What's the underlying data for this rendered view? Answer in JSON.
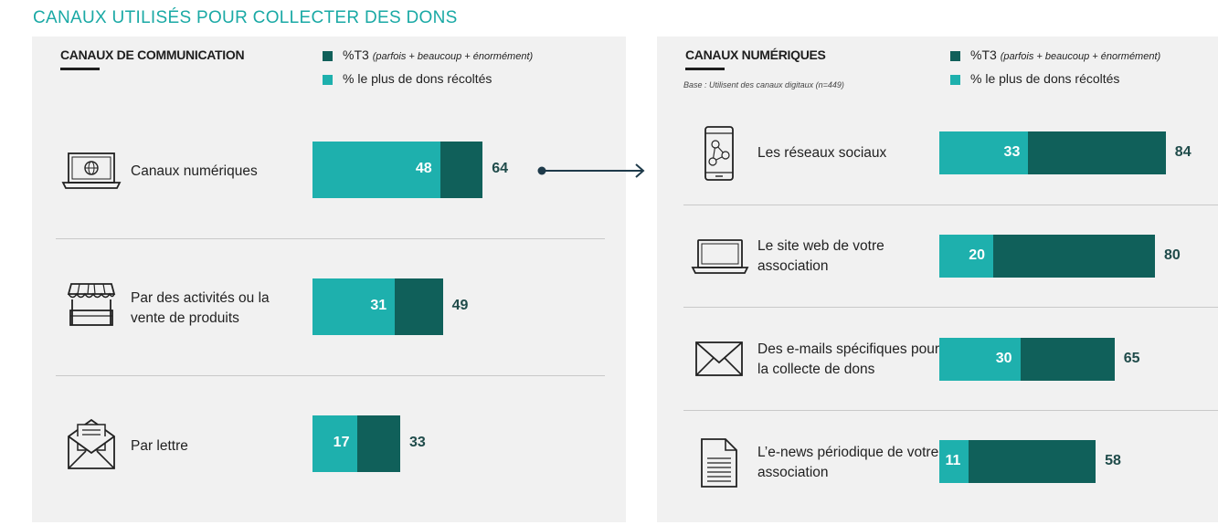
{
  "title": "CANAUX UTILISÉS POUR COLLECTER DES DONS",
  "colors": {
    "t3": "#10605a",
    "most": "#1eb0ad",
    "title": "#1aa9a5",
    "panel": "#f1f1f1"
  },
  "legend": {
    "t3_label": "%T3",
    "t3_note": "(parfois + beaucoup + énormément)",
    "most_label": "% le plus de dons récoltés"
  },
  "chart_data": [
    {
      "type": "bar",
      "title": "CANAUX DE COMMUNICATION",
      "categories": [
        "Canaux numériques",
        "Par des activités ou la vente de produits",
        "Par lettre"
      ],
      "series": [
        {
          "name": "%T3 (parfois + beaucoup + énormément)",
          "values": [
            64,
            49,
            33
          ]
        },
        {
          "name": "% le plus de dons récoltés",
          "values": [
            48,
            31,
            17
          ]
        }
      ],
      "icons": [
        "laptop-globe-icon",
        "market-stall-icon",
        "envelope-letter-icon"
      ]
    },
    {
      "type": "bar",
      "title": "CANAUX NUMÉRIQUES",
      "subtitle": "Base : Utilisent des canaux digitaux (n=449)",
      "categories": [
        "Les réseaux sociaux",
        "Le site web de votre association",
        "Des e-mails spécifiques pour la collecte de dons",
        "L’e-news périodique de votre association"
      ],
      "series": [
        {
          "name": "%T3 (parfois + beaucoup + énormément)",
          "values": [
            84,
            80,
            65,
            58
          ]
        },
        {
          "name": "% le plus de dons récoltés",
          "values": [
            33,
            20,
            30,
            11
          ]
        }
      ],
      "icons": [
        "smartphone-network-icon",
        "laptop-icon",
        "envelope-icon",
        "document-icon"
      ]
    }
  ]
}
